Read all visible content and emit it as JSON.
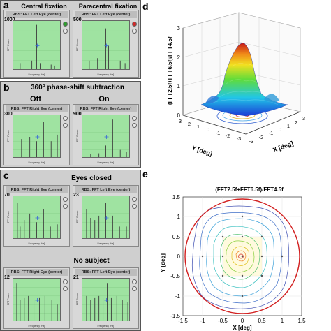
{
  "panel_a": {
    "label": "a",
    "left_title": "Central fixation",
    "right_title": "Paracentral fixation",
    "left_ymax": "1000",
    "right_ymax": "500",
    "window_title": "RBS: FFT Left Eye (center)",
    "left_peaks": [
      [
        10,
        0.15
      ],
      [
        27,
        0.2
      ],
      [
        34,
        0.92
      ],
      [
        39,
        0.15
      ],
      [
        55,
        0.12
      ],
      [
        60,
        0.1
      ]
    ],
    "right_peaks": [
      [
        10,
        0.2
      ],
      [
        22,
        0.25
      ],
      [
        34,
        0.85
      ],
      [
        38,
        0.5
      ],
      [
        55,
        0.2
      ],
      [
        62,
        0.15
      ]
    ],
    "left_status_color": "#2e9e2e",
    "right_status_color": "#d22a2a"
  },
  "panel_b": {
    "label": "b",
    "title": "360° phase-shift subtraction",
    "left_sub": "Off",
    "right_sub": "On",
    "left_ymax": "300",
    "right_ymax": "900",
    "window_title": "RBS: FFT Right Eye (center)",
    "left_peaks": [
      [
        12,
        0.45
      ],
      [
        24,
        0.5
      ],
      [
        34,
        0.4
      ],
      [
        44,
        0.85
      ],
      [
        55,
        0.4
      ],
      [
        64,
        0.55
      ]
    ],
    "right_peaks": [
      [
        12,
        0.1
      ],
      [
        24,
        0.12
      ],
      [
        34,
        0.3
      ],
      [
        44,
        0.9
      ],
      [
        55,
        0.2
      ],
      [
        64,
        0.15
      ]
    ]
  },
  "panel_c": {
    "label": "c",
    "title_top": "Eyes closed",
    "title_bottom": "No subject",
    "ymax": [
      "70",
      "23",
      "12",
      "21"
    ],
    "window_titles": [
      "RBS: FFT Right Eye (center)",
      "RBS: FFT Left Eye (center)",
      "RBS: FFT Right Eye (center)",
      "RBS: FFT Left Eye (center)"
    ],
    "peaks": [
      [
        [
          6,
          0.85
        ],
        [
          10,
          0.3
        ],
        [
          16,
          0.45
        ],
        [
          24,
          0.6
        ],
        [
          34,
          0.4
        ],
        [
          44,
          0.7
        ],
        [
          54,
          0.3
        ],
        [
          64,
          0.35
        ]
      ],
      [
        [
          6,
          0.7
        ],
        [
          12,
          0.5
        ],
        [
          18,
          0.45
        ],
        [
          24,
          0.55
        ],
        [
          34,
          0.85
        ],
        [
          44,
          0.55
        ],
        [
          54,
          0.3
        ],
        [
          64,
          0.3
        ]
      ],
      [
        [
          5,
          0.9
        ],
        [
          10,
          0.5
        ],
        [
          16,
          0.55
        ],
        [
          22,
          0.6
        ],
        [
          30,
          0.5
        ],
        [
          38,
          0.55
        ],
        [
          46,
          0.6
        ],
        [
          56,
          0.5
        ],
        [
          64,
          0.4
        ]
      ],
      [
        [
          6,
          0.6
        ],
        [
          12,
          0.5
        ],
        [
          18,
          0.55
        ],
        [
          24,
          0.6
        ],
        [
          30,
          0.55
        ],
        [
          36,
          0.9
        ],
        [
          42,
          0.55
        ],
        [
          50,
          0.6
        ],
        [
          58,
          0.5
        ],
        [
          66,
          0.45
        ]
      ]
    ]
  },
  "inner_axes": {
    "ylabel": "FFT Power",
    "xlabel": "Frequency [Hz]",
    "xticks": [
      "0",
      "50",
      "100",
      "150",
      "200",
      "250"
    ]
  },
  "panel_d": {
    "label": "d",
    "zlabel": "(FFT2.5f+FFT6.5f)/FFT4.5f",
    "z_ticks": [
      "0",
      "1",
      "2",
      "3"
    ],
    "y_label": "Y [deg]",
    "x_label": "X [deg]",
    "y_ticks": [
      "3",
      "2",
      "1",
      "0",
      "-1",
      "-2",
      "-3"
    ],
    "x_ticks": [
      "-3",
      "-2",
      "-1",
      "0",
      "1",
      "2",
      "3"
    ]
  },
  "panel_e": {
    "label": "e",
    "title": "(FFT2.5f+FFT6.5f)/FFT4.5f",
    "ylabel": "Y [deg]",
    "xlabel": "X [deg]",
    "y_ticks": [
      "1.5",
      "1",
      "0.5",
      "0",
      "-0.5",
      "-1",
      "-1.5"
    ],
    "x_ticks": [
      "-1.5",
      "-1",
      "-0.5",
      "0",
      "0.5",
      "1",
      "1.5"
    ],
    "circle_color": "#d22020"
  },
  "chart_data": {
    "type": "contour",
    "title": "(FFT2.5f+FFT6.5f)/FFT4.5f",
    "xlabel": "X [deg]",
    "ylabel": "Y [deg]",
    "xlim": [
      -1.5,
      1.5
    ],
    "ylim": [
      -1.5,
      1.5
    ]
  }
}
